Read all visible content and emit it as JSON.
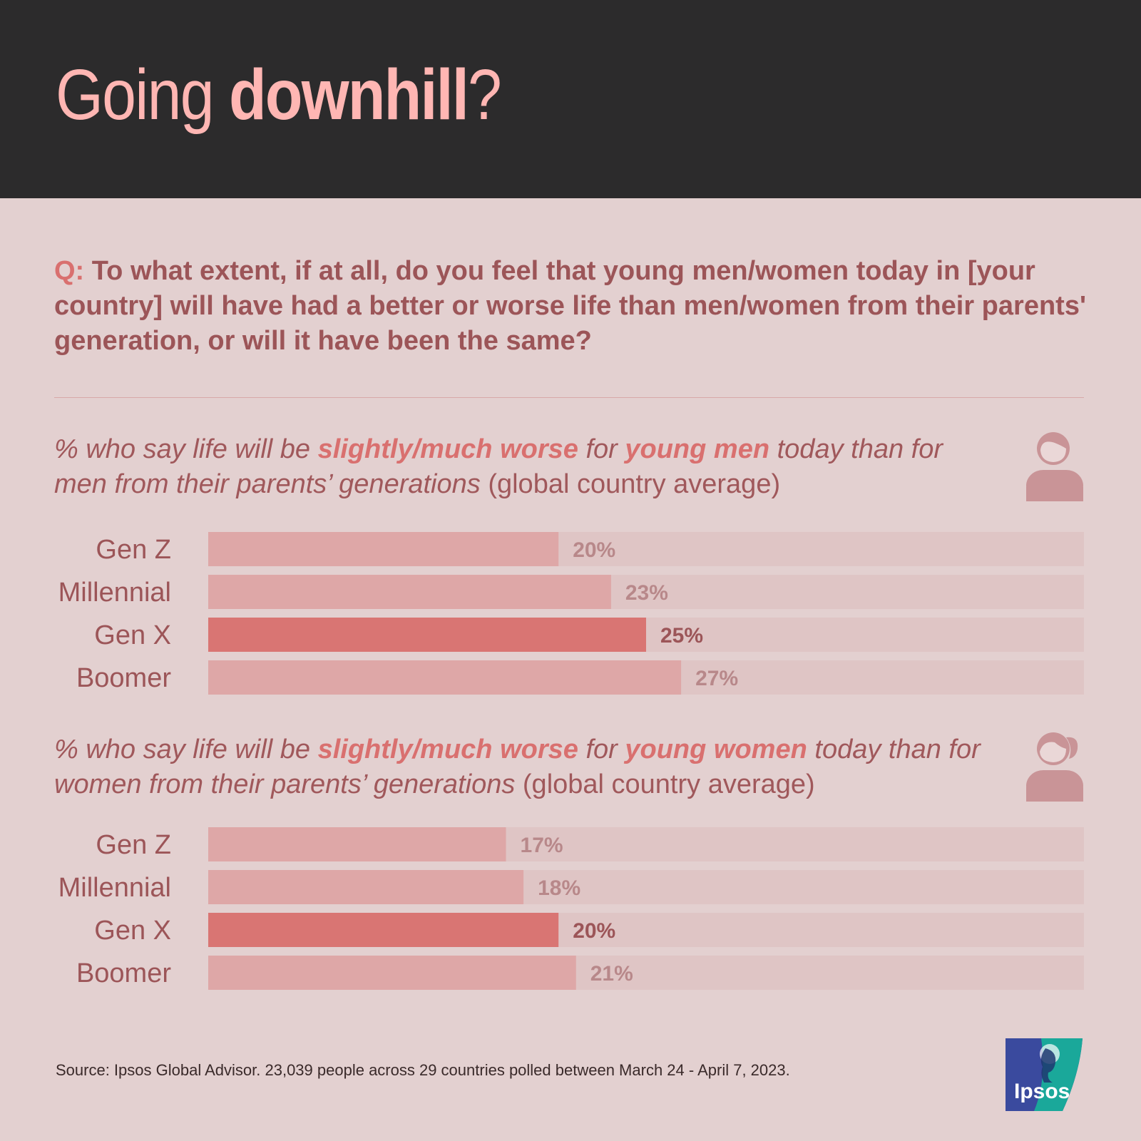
{
  "title": {
    "light": "Going ",
    "bold": "downhill",
    "end": "?"
  },
  "question": {
    "prefix": "Q:",
    "text": " To what extent, if at all, do you feel that young men/women today in [your country] will have had a better or worse life than men/women from their parents' generation, or will it have been the same?"
  },
  "sections": [
    {
      "subtitle": {
        "p1": "% who say life will be ",
        "h1": "slightly/much worse",
        "p2": " for ",
        "h2": "young men",
        "p3": " today than for men from their parents’ generations",
        "p4": " (global country average)"
      },
      "icon": "man-icon"
    },
    {
      "subtitle": {
        "p1": "% who say life will be ",
        "h1": "slightly/much worse",
        "p2": " for ",
        "h2": "young women",
        "p3": " today than for women from their parents’ generations",
        "p4": " (global country average)"
      },
      "icon": "woman-icon"
    }
  ],
  "chart_data": [
    {
      "type": "bar",
      "categories": [
        "Gen Z",
        "Millennial",
        "Gen X",
        "Boomer"
      ],
      "values": [
        20,
        23,
        25,
        27
      ],
      "value_labels": [
        "20%",
        "23%",
        "25%",
        "27%"
      ],
      "highlight": "Gen X",
      "xlim": [
        0,
        50
      ]
    },
    {
      "type": "bar",
      "categories": [
        "Gen Z",
        "Millennial",
        "Gen X",
        "Boomer"
      ],
      "values": [
        17,
        18,
        20,
        21
      ],
      "value_labels": [
        "17%",
        "18%",
        "20%",
        "21%"
      ],
      "highlight": "Gen X",
      "xlim": [
        0,
        50
      ]
    }
  ],
  "colors": {
    "track": "#dfc5c5",
    "bar": "#dea7a7",
    "bar_highlight": "#d97573",
    "label": "#9c5558",
    "value": "#b8888a",
    "value_highlight": "#9c5558"
  },
  "footer": "Source: Ipsos Global Advisor. 23,039 people across 29 countries polled between March 24 - April 7, 2023.",
  "logo": {
    "text": "Ipsos"
  }
}
